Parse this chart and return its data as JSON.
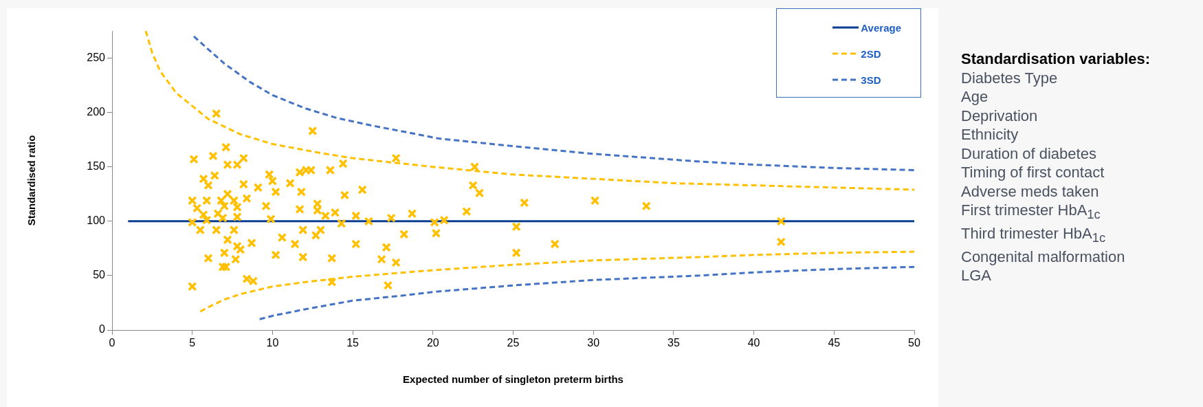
{
  "chart_data": {
    "type": "scatter",
    "xlabel": "Expected number of singleton preterm births",
    "ylabel": "Standardised ratio",
    "xlim": [
      0,
      50
    ],
    "xticks": [
      0,
      5,
      10,
      15,
      20,
      25,
      30,
      35,
      40,
      45,
      50
    ],
    "ylim": [
      0,
      275
    ],
    "yticks": [
      0,
      50,
      100,
      150,
      200,
      250
    ],
    "grid": false,
    "legend": "top right",
    "series": [
      {
        "type": "scatter",
        "color": "#ffc000",
        "marker": "cross",
        "x": [
          6.5,
          12.5,
          5.1,
          6.3,
          7.1,
          7.2,
          7.8,
          8.2,
          5.7,
          6.4,
          6.0,
          8.2,
          9.1,
          9.8,
          10.0,
          10.2,
          11.1,
          11.7,
          12.1,
          12.4,
          11.8,
          11.7,
          9.6,
          9.9,
          5.0,
          5.9,
          6.8,
          7.2,
          7.6,
          8.4,
          5.3,
          5.7,
          7.0,
          6.6,
          7.8,
          7.8,
          5.9,
          5.0,
          5.5,
          6.5,
          6.9,
          7.6,
          7.2,
          7.8,
          8.0,
          8.7,
          6.0,
          7.0,
          7.7,
          6.9,
          7.1,
          5.0,
          8.4,
          8.8,
          10.2,
          10.6,
          11.4,
          11.9,
          11.9,
          12.7,
          12.8,
          13.6,
          14.4,
          17.7,
          22.6,
          22.5,
          22.9,
          14.5,
          15.6,
          12.8,
          13.3,
          13.9,
          14.3,
          15.2,
          16.0,
          17.4,
          18.7,
          20.1,
          20.7,
          22.1,
          20.2,
          18.2,
          13.0,
          15.2,
          13.7,
          17.1,
          16.8,
          17.7,
          13.7,
          17.2,
          25.7,
          25.2,
          25.2,
          27.6,
          30.1,
          33.3,
          41.7,
          41.7
        ],
        "values": [
          199,
          183,
          157,
          160,
          168,
          152,
          152,
          158,
          139,
          142,
          133,
          134,
          131,
          143,
          137,
          127,
          135,
          145,
          147,
          147,
          127,
          111,
          114,
          102,
          119,
          119,
          119,
          125,
          119,
          121,
          112,
          106,
          114,
          107,
          113,
          104,
          101,
          99,
          92,
          92,
          103,
          92,
          83,
          77,
          74,
          80,
          66,
          71,
          65,
          58,
          58,
          40,
          47,
          45,
          69,
          85,
          79,
          67,
          92,
          87,
          116,
          147,
          153,
          158,
          150,
          133,
          126,
          124,
          129,
          110,
          105,
          108,
          98,
          105,
          100,
          103,
          107,
          99,
          101,
          109,
          89,
          88,
          92,
          79,
          66,
          76,
          65,
          62,
          44,
          41,
          117,
          95,
          71,
          79,
          119,
          114,
          100,
          81
        ]
      },
      {
        "type": "line",
        "name": "Average",
        "color": "#0b3d91",
        "marker": "none",
        "line_style": "solid",
        "x": [
          1,
          50
        ],
        "values": [
          100,
          100
        ]
      },
      {
        "type": "line",
        "name": "2SD",
        "color": "#ffc000",
        "marker": "none",
        "line_style": "dashed",
        "x": [
          2.1,
          2.5,
          3,
          4,
          5,
          6,
          8,
          10,
          12.9,
          15,
          20,
          25,
          30,
          35,
          40,
          45,
          50
        ],
        "values": [
          275,
          255,
          238,
          218,
          206,
          194,
          180,
          171,
          163,
          158,
          150,
          143,
          139,
          135,
          133,
          131,
          129
        ]
      },
      {
        "type": "line",
        "color": "#ffc000",
        "marker": "none",
        "line_style": "dashed",
        "x": [
          5.5,
          6,
          7,
          8,
          10,
          12,
          15,
          18.3,
          20,
          25,
          30,
          36.5,
          40,
          45,
          50
        ],
        "values": [
          17,
          21,
          28,
          33,
          40,
          44,
          49,
          53,
          55,
          60,
          64,
          67,
          69,
          71,
          72
        ]
      },
      {
        "type": "line",
        "name": "3SD",
        "color": "#4472c4",
        "marker": "none",
        "line_style": "dashed",
        "x": [
          5.1,
          6,
          7,
          8.6,
          10,
          12,
          14,
          16.2,
          20.4,
          25,
          30,
          36.5,
          40,
          45,
          50
        ],
        "values": [
          270,
          258,
          245,
          228,
          216,
          204,
          195,
          188,
          176,
          169,
          162,
          155,
          152,
          149,
          147
        ]
      },
      {
        "type": "line",
        "color": "#4472c4",
        "marker": "none",
        "line_style": "dashed",
        "x": [
          9.2,
          10,
          12,
          15,
          18.3,
          20,
          25,
          30,
          36.5,
          40,
          45,
          50
        ],
        "values": [
          10,
          13,
          19,
          27,
          32,
          35,
          41,
          46,
          50,
          53,
          56,
          58
        ]
      }
    ],
    "annotations": [
      "Standardisation variables:",
      "Diabetes Type",
      "Age",
      "Deprivation",
      "Ethnicity",
      "Duration of diabetes",
      "Timing of first contact",
      "Adverse meds taken",
      "First trimester HbA$_{1c}$",
      "Third trimester HbA$_{1c}$",
      "Congenital malformation",
      "LGA"
    ]
  }
}
